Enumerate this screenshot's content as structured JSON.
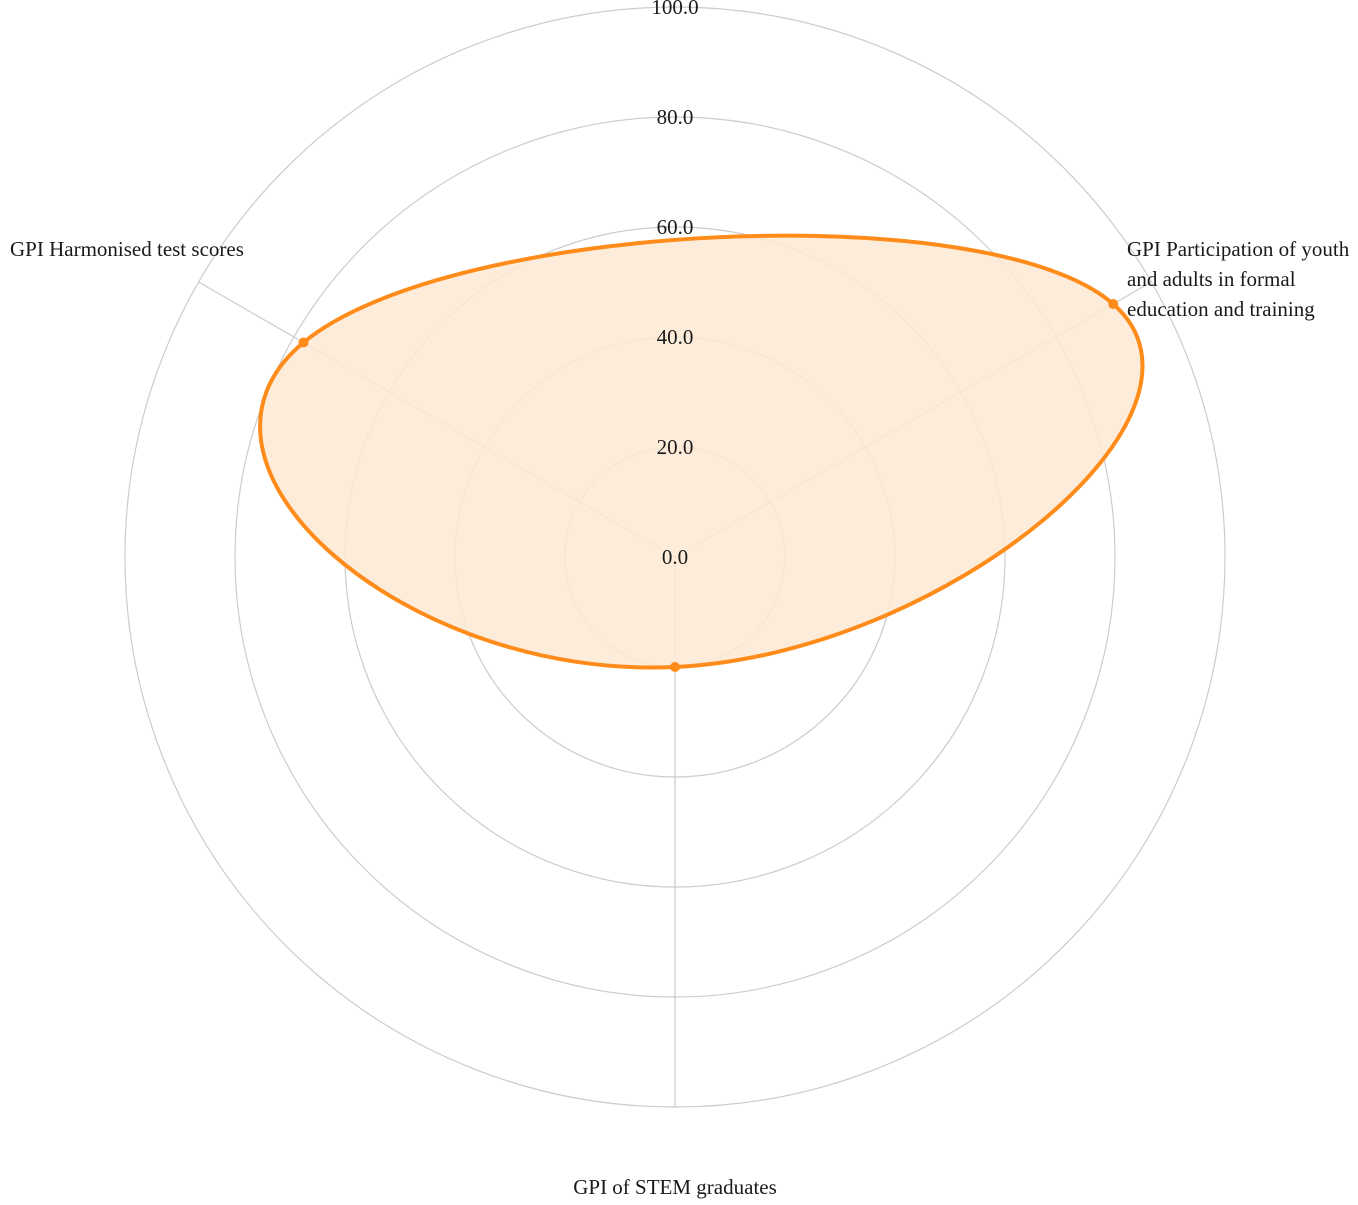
{
  "chart_data": {
    "type": "radar",
    "axes": [
      "GPI Participation of youth and adults in formal education and training",
      "GPI of STEM graduates",
      "GPI Harmonised test scores"
    ],
    "series": [
      {
        "values": [
          92,
          20,
          78
        ]
      }
    ],
    "rlim": [
      0,
      100
    ],
    "tick_labels": [
      "0.0",
      "20.0",
      "40.0",
      "60.0",
      "80.0",
      "100.0"
    ],
    "grid": true,
    "colors": {
      "line": "#ff8c1a",
      "fill": "#fde9d4",
      "grid": "#cccccc"
    }
  }
}
